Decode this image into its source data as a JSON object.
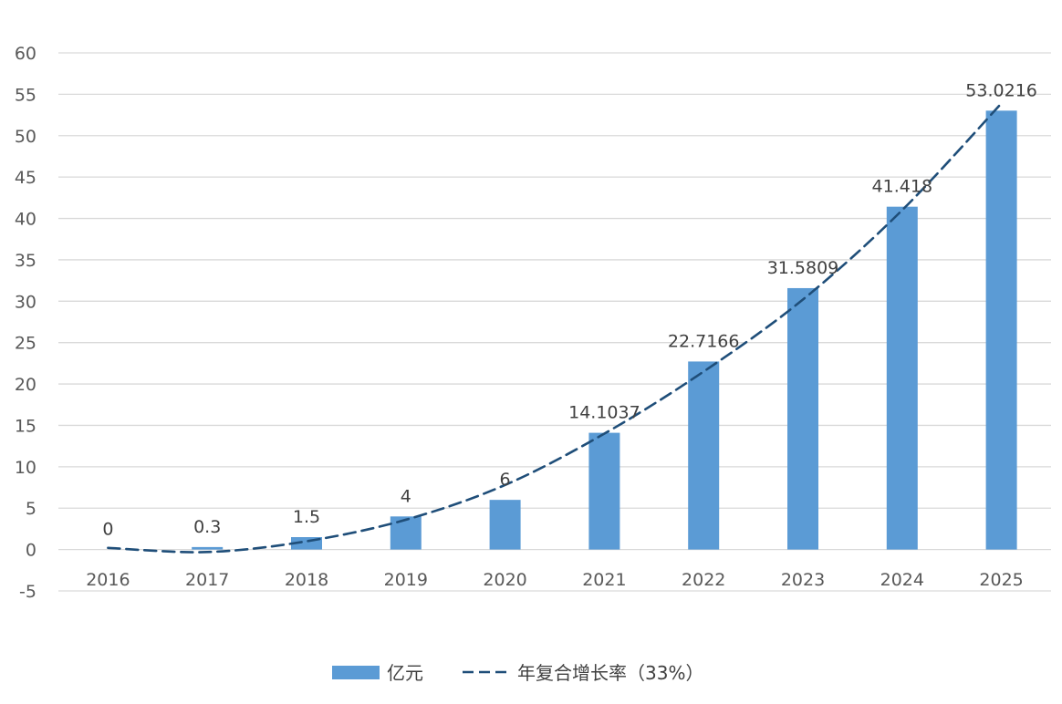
{
  "chart_data": {
    "type": "bar",
    "title": "",
    "xlabel": "",
    "ylabel": "",
    "categories": [
      "2016",
      "2017",
      "2018",
      "2019",
      "2020",
      "2021",
      "2022",
      "2023",
      "2024",
      "2025"
    ],
    "series": [
      {
        "name": "亿元",
        "type": "bar",
        "color": "#5B9BD5",
        "values": [
          0,
          0.3,
          1.5,
          4,
          6,
          14.1037,
          22.7166,
          31.5809,
          41.418,
          53.0216
        ],
        "labels": [
          "0",
          "0.3",
          "1.5",
          "4",
          "6",
          "14.1037",
          "22.7166",
          "31.5809",
          "41.418",
          "53.0216"
        ]
      },
      {
        "name": "年复合增长率（33%）",
        "type": "line",
        "style": "dashed",
        "smooth": true,
        "color": "#1F4E79",
        "values": [
          0.2,
          -0.3,
          1.0,
          3.6,
          7.8,
          14.0,
          21.5,
          30.2,
          41.0,
          53.9
        ]
      }
    ],
    "ylim": [
      -5,
      60
    ],
    "yticks": [
      -5,
      0,
      5,
      10,
      15,
      20,
      25,
      30,
      35,
      40,
      45,
      50,
      55,
      60
    ],
    "grid": true,
    "legend": "bottom"
  }
}
